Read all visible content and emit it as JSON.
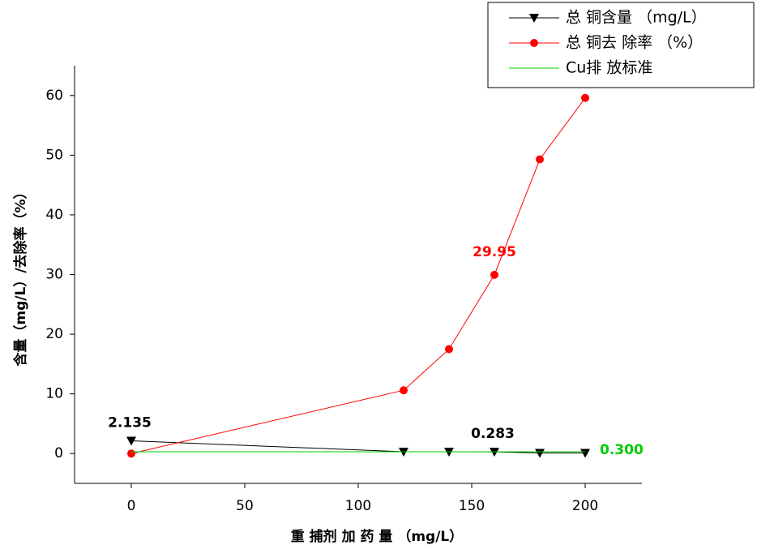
{
  "chart_data": {
    "type": "line",
    "xlabel": "重 捕剂 加 药 量 （mg/L）",
    "ylabel": "含量（mg/L）/去除率（%）",
    "xlim": [
      -25,
      225
    ],
    "xticks": [
      0,
      50,
      100,
      150,
      200
    ],
    "ylim": [
      -5,
      65
    ],
    "yticks": [
      0,
      10,
      20,
      30,
      40,
      50,
      60
    ],
    "legend": "top-right",
    "series": [
      {
        "name": "总 铜含量 （mg/L）",
        "color": "#000000",
        "marker": "triangle-down",
        "x": [
          0,
          120,
          140,
          160,
          180,
          200
        ],
        "values": [
          2.135,
          0.3,
          0.3,
          0.283,
          0.1,
          0.1
        ],
        "value_labels": [
          "2.135",
          null,
          null,
          "0.283",
          null,
          null
        ]
      },
      {
        "name": "总 铜去 除率 （%）",
        "color": "#ff0000",
        "marker": "circle",
        "x": [
          0,
          120,
          140,
          160,
          180,
          200
        ],
        "values": [
          0,
          10.6,
          17.5,
          29.95,
          49.3,
          59.6
        ],
        "value_labels": [
          null,
          null,
          null,
          "29.95",
          null,
          null
        ]
      },
      {
        "name": "Cu排 放标准",
        "color": "#00cc00",
        "marker": "none",
        "x": [
          0,
          200
        ],
        "values": [
          0.3,
          0.3
        ],
        "value_labels": [
          null,
          "0.300"
        ]
      }
    ]
  }
}
